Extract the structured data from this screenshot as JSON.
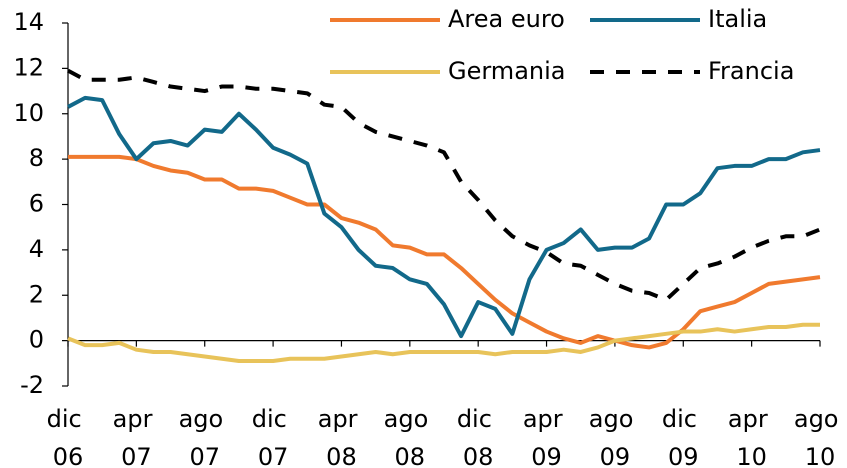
{
  "chart_data": {
    "type": "line",
    "categories": [
      "dic 06",
      null,
      null,
      null,
      "apr 07",
      null,
      null,
      null,
      "ago 07",
      null,
      null,
      null,
      "dic 07",
      null,
      null,
      null,
      "apr 08",
      null,
      null,
      null,
      "ago 08",
      null,
      null,
      null,
      "dic 08",
      null,
      null,
      null,
      "apr 09",
      null,
      null,
      null,
      "ago 09",
      null,
      null,
      null,
      "dic 09",
      null,
      null,
      null,
      "apr 10",
      null,
      null,
      null,
      "ago 10"
    ],
    "series": [
      {
        "name": "Area euro",
        "color": "#f07a2e",
        "dash": false,
        "values": [
          8.1,
          8.1,
          8.1,
          8.1,
          8.0,
          7.7,
          7.5,
          7.4,
          7.1,
          7.1,
          6.7,
          6.7,
          6.6,
          6.3,
          6.0,
          6.0,
          5.4,
          5.2,
          4.9,
          4.2,
          4.1,
          3.8,
          3.8,
          3.2,
          2.5,
          1.8,
          1.2,
          0.8,
          0.4,
          0.1,
          -0.1,
          0.2,
          0.0,
          -0.2,
          -0.3,
          -0.1,
          0.5,
          1.3,
          1.5,
          1.7,
          2.1,
          2.5,
          2.6,
          2.7,
          2.8
        ]
      },
      {
        "name": "Italia",
        "color": "#12698a",
        "dash": false,
        "values": [
          10.3,
          10.7,
          10.6,
          9.1,
          8.0,
          8.7,
          8.8,
          8.6,
          9.3,
          9.2,
          10.0,
          9.3,
          8.5,
          8.2,
          7.8,
          5.6,
          5.0,
          4.0,
          3.3,
          3.2,
          2.7,
          2.5,
          1.6,
          0.2,
          1.7,
          1.4,
          0.3,
          2.7,
          4.0,
          4.3,
          4.9,
          4.0,
          4.1,
          4.1,
          4.5,
          6.0,
          6.0,
          6.5,
          7.6,
          7.7,
          7.7,
          8.0,
          8.0,
          8.3,
          8.4
        ]
      },
      {
        "name": "Germania",
        "color": "#e8c35a",
        "dash": false,
        "values": [
          0.1,
          -0.2,
          -0.2,
          -0.1,
          -0.4,
          -0.5,
          -0.5,
          -0.6,
          -0.7,
          -0.8,
          -0.9,
          -0.9,
          -0.9,
          -0.8,
          -0.8,
          -0.8,
          -0.7,
          -0.6,
          -0.5,
          -0.6,
          -0.5,
          -0.5,
          -0.5,
          -0.5,
          -0.5,
          -0.6,
          -0.5,
          -0.5,
          -0.5,
          -0.4,
          -0.5,
          -0.3,
          0.0,
          0.1,
          0.2,
          0.3,
          0.4,
          0.4,
          0.5,
          0.4,
          0.5,
          0.6,
          0.6,
          0.7,
          0.7
        ]
      },
      {
        "name": "Francia",
        "color": "#000000",
        "dash": true,
        "values": [
          11.9,
          11.5,
          11.5,
          11.5,
          11.6,
          11.4,
          11.2,
          11.1,
          11.0,
          11.2,
          11.2,
          11.1,
          11.1,
          11.0,
          10.9,
          10.4,
          10.3,
          9.6,
          9.2,
          9.0,
          8.8,
          8.6,
          8.3,
          7.0,
          6.2,
          5.3,
          4.6,
          4.2,
          3.9,
          3.4,
          3.3,
          2.9,
          2.5,
          2.2,
          2.1,
          1.8,
          2.5,
          3.2,
          3.4,
          3.7,
          4.1,
          4.4,
          4.6,
          4.6,
          4.9
        ]
      }
    ],
    "ylim": [
      -2,
      14
    ],
    "yticks": [
      -2,
      0,
      2,
      4,
      6,
      8,
      10,
      12,
      14
    ],
    "grid": false,
    "legend": "top-right"
  }
}
